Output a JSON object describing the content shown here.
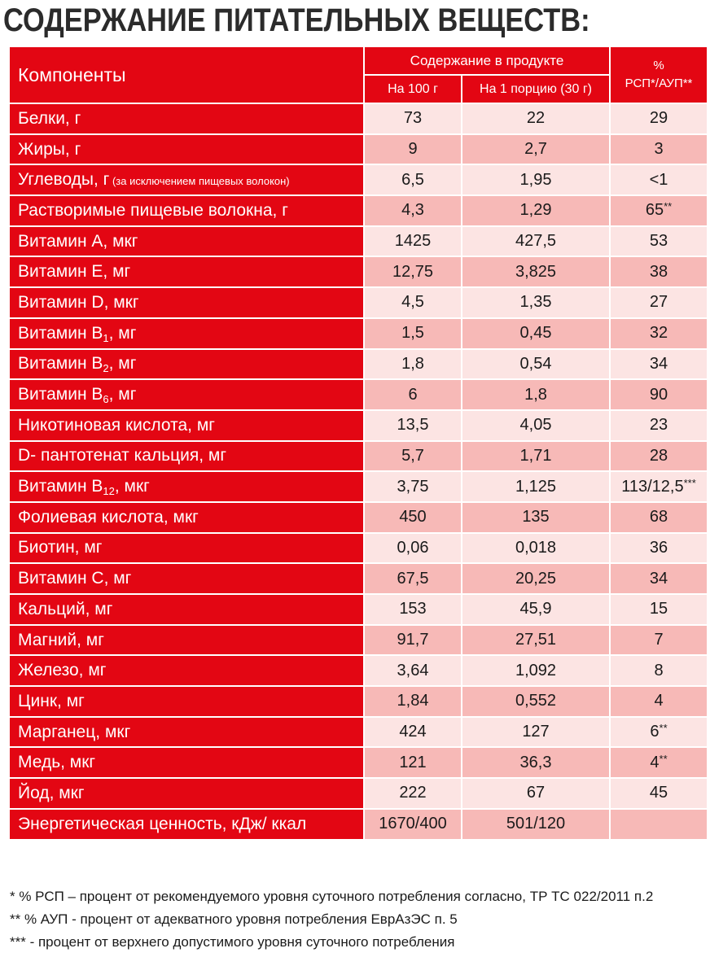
{
  "title": "СОДЕРЖАНИЕ ПИТАТЕЛЬНЫХ ВЕЩЕСТВ:",
  "header": {
    "components": "Компоненты",
    "content_group": "Содержание в продукте",
    "per100": "На 100 г",
    "per_portion": "На 1 порцию (30 г)",
    "pct_line1": "%",
    "pct_line2": "РСП*/АУП**"
  },
  "rows": [
    {
      "name": "Белки, г",
      "per100": "73",
      "portion": "22",
      "pct": "29"
    },
    {
      "name": "Жиры, г",
      "per100": "9",
      "portion": "2,7",
      "pct": "3"
    },
    {
      "name": "Углеводы, г",
      "note": " (за исключением пищевых волокон)",
      "per100": "6,5",
      "portion": "1,95",
      "pct": "<1"
    },
    {
      "name": "Растворимые пищевые волокна, г",
      "per100": "4,3",
      "portion": "1,29",
      "pct": "65",
      "pct_mark": "**"
    },
    {
      "name": "Витамин А, мкг",
      "per100": "1425",
      "portion": "427,5",
      "pct": "53"
    },
    {
      "name": "Витамин Е, мг",
      "per100": "12,75",
      "portion": "3,825",
      "pct": "38"
    },
    {
      "name": "Витамин D, мкг",
      "per100": "4,5",
      "portion": "1,35",
      "pct": "27"
    },
    {
      "name": "Витамин В",
      "sub": "1",
      "unit": ", мг",
      "per100": "1,5",
      "portion": "0,45",
      "pct": "32"
    },
    {
      "name": "Витамин В",
      "sub": "2",
      "unit": ", мг",
      "per100": "1,8",
      "portion": "0,54",
      "pct": "34"
    },
    {
      "name": "Витамин В",
      "sub": "6",
      "unit": ", мг",
      "per100": "6",
      "portion": "1,8",
      "pct": "90"
    },
    {
      "name": "Никотиновая кислота, мг",
      "per100": "13,5",
      "portion": "4,05",
      "pct": "23"
    },
    {
      "name": "D- пантотенат кальция, мг",
      "per100": "5,7",
      "portion": "1,71",
      "pct": "28"
    },
    {
      "name": "Витамин В",
      "sub": "12",
      "unit": ", мкг",
      "per100": "3,75",
      "portion": "1,125",
      "pct": "113/12,5",
      "pct_mark": "***"
    },
    {
      "name": "Фолиевая кислота, мкг",
      "per100": "450",
      "portion": "135",
      "pct": "68"
    },
    {
      "name": "Биотин, мг",
      "per100": "0,06",
      "portion": "0,018",
      "pct": "36"
    },
    {
      "name": "Витамин С, мг",
      "per100": "67,5",
      "portion": "20,25",
      "pct": "34"
    },
    {
      "name": "Кальций, мг",
      "per100": "153",
      "portion": "45,9",
      "pct": "15"
    },
    {
      "name": "Магний, мг",
      "per100": "91,7",
      "portion": "27,51",
      "pct": "7"
    },
    {
      "name": "Железо, мг",
      "per100": "3,64",
      "portion": "1,092",
      "pct": "8"
    },
    {
      "name": "Цинк, мг",
      "per100": "1,84",
      "portion": "0,552",
      "pct": "4"
    },
    {
      "name": "Марганец, мкг",
      "per100": "424",
      "portion": "127",
      "pct": "6",
      "pct_mark": "**"
    },
    {
      "name": "Медь, мкг",
      "per100": "121",
      "portion": "36,3",
      "pct": "4",
      "pct_mark": "**"
    },
    {
      "name": "Йод, мкг",
      "per100": "222",
      "portion": "67",
      "pct": "45"
    },
    {
      "name": "Энергетическая ценность, кДж/ ккал",
      "per100": "1670/400",
      "portion": "501/120",
      "pct": ""
    }
  ],
  "footnotes": [
    "* % РСП – процент от рекомендуемого уровня суточного потребления согласно, ТР ТС 022/2011 п.2",
    "** % АУП - процент от адекватного уровня потребления ЕврАзЭС п. 5",
    "*** - процент от верхнего допустимого уровня суточного потребления"
  ],
  "colors": {
    "header_red": "#e30613",
    "row_light": "#fce4e3",
    "row_dark": "#f7b9b7"
  }
}
